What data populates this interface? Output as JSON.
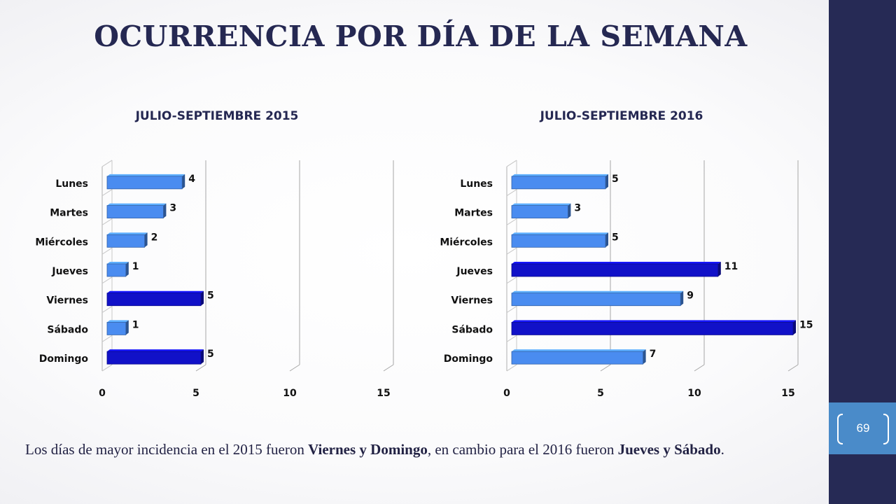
{
  "slide": {
    "title": "OCURRENCIA POR DÍA DE LA SEMANA",
    "page_number": "69",
    "caption": {
      "text_1": "Los días de mayor incidencia en el 2015 fueron ",
      "bold_1": "Viernes y Domingo",
      "text_2": ", en cambio para el 2016 fueron ",
      "bold_2": "Jueves y Sábado",
      "text_3": "."
    }
  },
  "colors": {
    "title": "#252852",
    "sidebar": "#262a55",
    "page_tab": "#4a8bc9",
    "bar_light": "#4a8cf0",
    "bar_dark": "#1111c8"
  },
  "chart_data": [
    {
      "type": "bar",
      "orientation": "horizontal",
      "title": "JULIO-SEPTIEMBRE 2015",
      "categories": [
        "Lunes",
        "Martes",
        "Miércoles",
        "Jueves",
        "Viernes",
        "Sábado",
        "Domingo"
      ],
      "values": [
        4,
        3,
        2,
        1,
        5,
        1,
        5
      ],
      "highlighted": [
        "Viernes",
        "Domingo"
      ],
      "xlim": [
        0,
        15
      ],
      "xticks": [
        0,
        5,
        10,
        15
      ],
      "grid": "vertical",
      "data_labels": true
    },
    {
      "type": "bar",
      "orientation": "horizontal",
      "title": "JULIO-SEPTIEMBRE 2016",
      "categories": [
        "Lunes",
        "Martes",
        "Miércoles",
        "Jueves",
        "Viernes",
        "Sábado",
        "Domingo"
      ],
      "values": [
        5,
        3,
        5,
        11,
        9,
        15,
        7
      ],
      "highlighted": [
        "Jueves",
        "Sábado"
      ],
      "xlim": [
        0,
        15
      ],
      "xticks": [
        0,
        5,
        10,
        15
      ],
      "grid": "vertical",
      "data_labels": true
    }
  ]
}
